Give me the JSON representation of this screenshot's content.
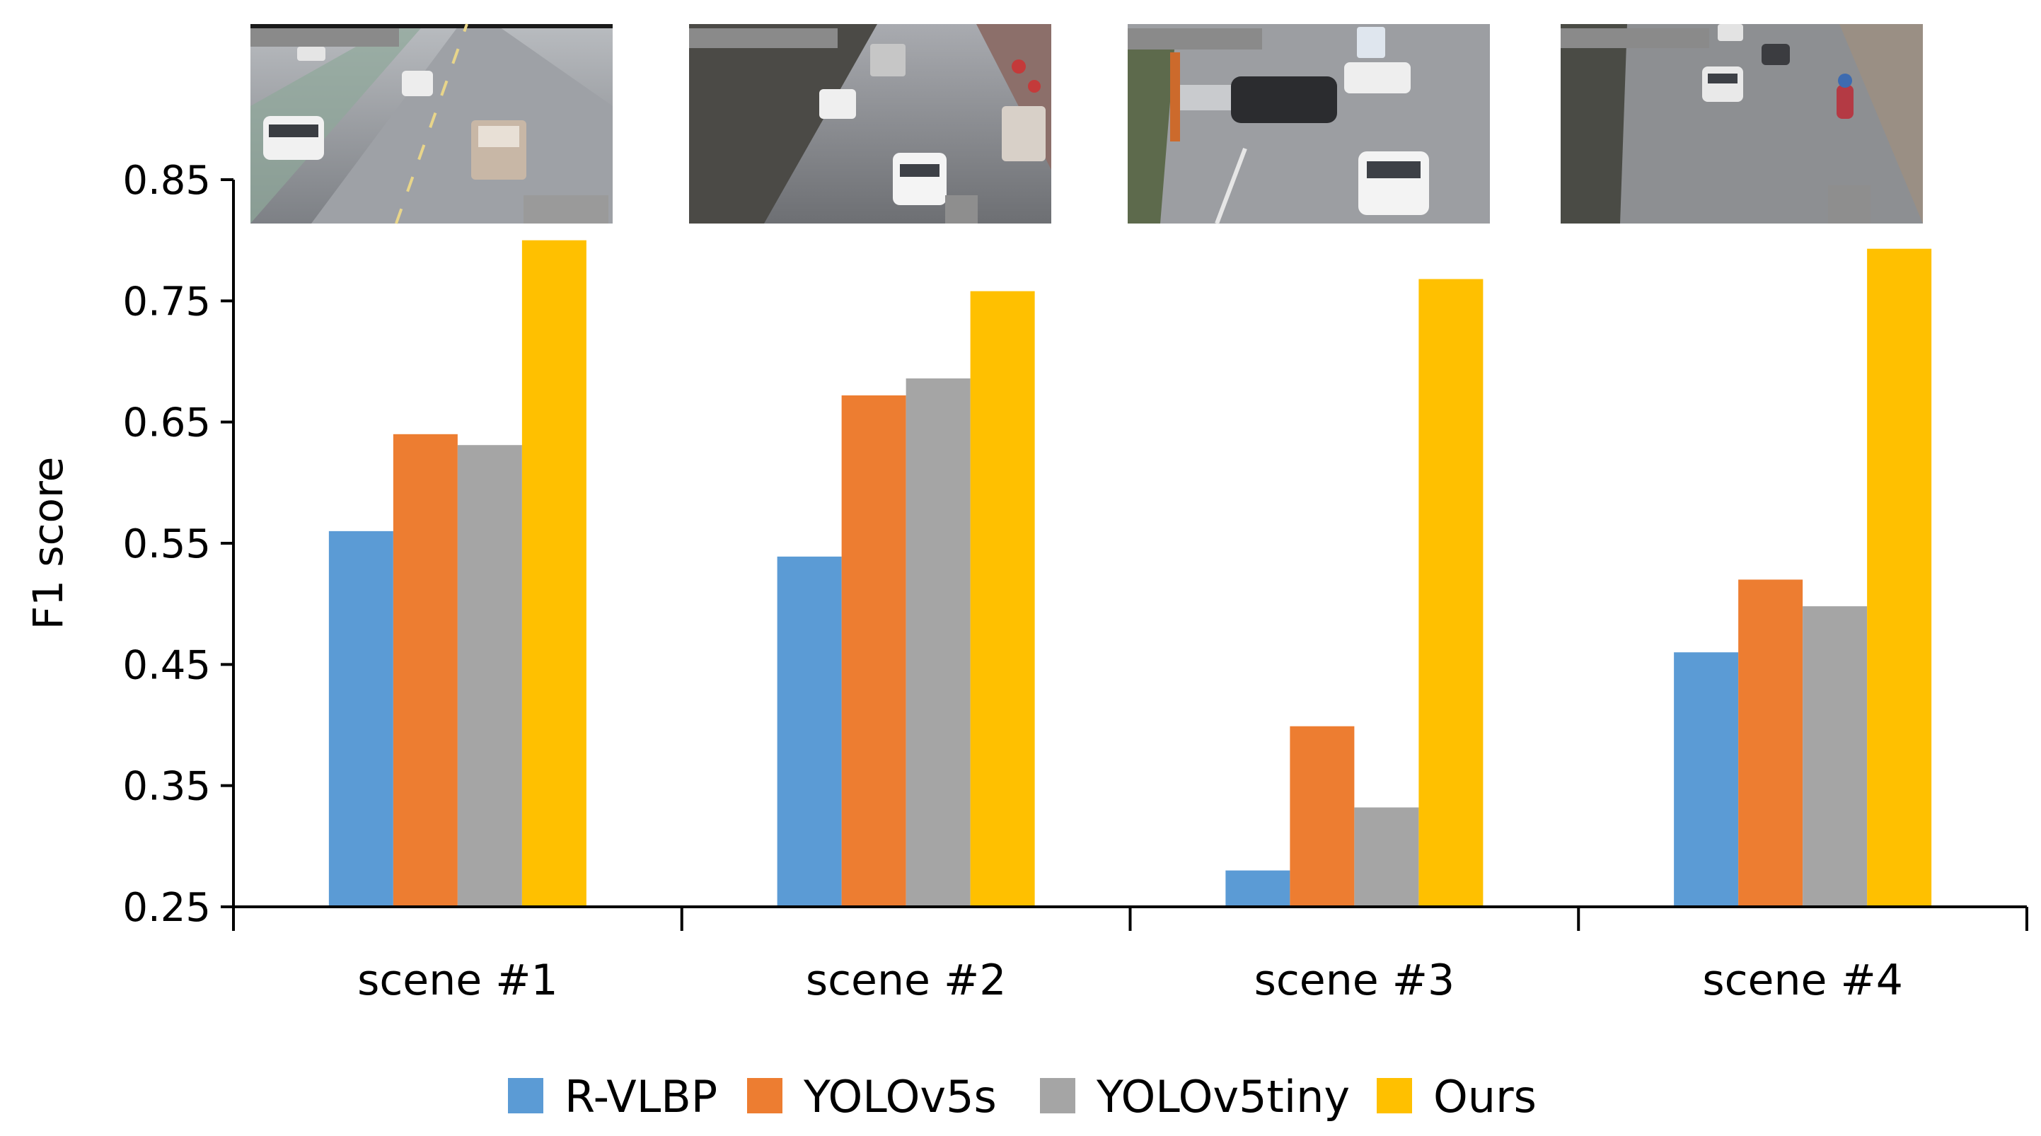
{
  "chart_data": {
    "type": "bar",
    "title": "",
    "xlabel": "",
    "ylabel": "F1 score",
    "ylim": [
      0.25,
      0.85
    ],
    "yticks": [
      "0.25",
      "0.35",
      "0.45",
      "0.55",
      "0.65",
      "0.75",
      "0.85"
    ],
    "categories": [
      "scene #1",
      "scene #2",
      "scene #3",
      "scene #4"
    ],
    "series": [
      {
        "name": "R-VLBP",
        "color": "#5B9BD5",
        "values": [
          0.56,
          0.539,
          0.28,
          0.46
        ]
      },
      {
        "name": "YOLOv5s",
        "color": "#ED7D31",
        "values": [
          0.64,
          0.672,
          0.399,
          0.52
        ]
      },
      {
        "name": "YOLOv5tiny",
        "color": "#A5A5A5",
        "values": [
          0.631,
          0.686,
          0.332,
          0.498
        ]
      },
      {
        "name": "Ours",
        "color": "#FFC000",
        "values": [
          0.8,
          0.758,
          0.768,
          0.793
        ]
      }
    ],
    "legend_position": "bottom-center",
    "grid": false,
    "scene_images": [
      "scene #1 thumbnail",
      "scene #2 thumbnail",
      "scene #3 thumbnail",
      "scene #4 thumbnail"
    ]
  }
}
